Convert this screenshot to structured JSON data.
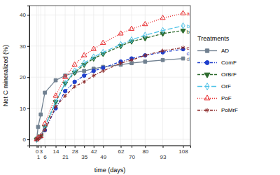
{
  "chart_data": {
    "type": "line",
    "x_label": "time (days)",
    "y_label": "Net C mineralized (%)",
    "x": [
      0,
      1,
      3,
      6,
      14,
      21,
      28,
      35,
      42,
      49,
      62,
      70,
      80,
      93,
      108
    ],
    "xlim": [
      -5.4,
      113.4
    ],
    "xticks": [
      0,
      1,
      3,
      6,
      14,
      21,
      28,
      35,
      42,
      49,
      62,
      70,
      80,
      93,
      108
    ],
    "ylim": [
      -2,
      43
    ],
    "yticks": [
      0,
      10,
      20,
      30,
      40
    ],
    "grid": true,
    "legend": "right",
    "legend_title": "Treatments",
    "series": [
      {
        "name": "AD",
        "color": "#708090",
        "marker": "square",
        "line_style": "solid",
        "values": [
          0,
          4,
          8,
          15,
          19,
          20.5,
          21.5,
          22,
          22.7,
          23.3,
          24,
          24.5,
          25,
          25.5,
          26
        ]
      },
      {
        "name": "ComF",
        "color": "#1f3fcc",
        "marker": "circle",
        "line_style": "dashdot",
        "values": [
          0,
          0.3,
          1,
          3,
          10,
          15.5,
          18.5,
          20.5,
          22,
          23,
          25,
          26,
          27,
          28,
          29
        ]
      },
      {
        "name": "OrBrF",
        "color": "#2e6b2e",
        "marker": "triangle-down",
        "line_style": "dashed",
        "values": [
          0,
          0.3,
          1,
          4,
          12,
          18,
          21.5,
          24,
          26,
          27.5,
          30,
          31.5,
          32.5,
          34,
          35
        ]
      },
      {
        "name": "OrF",
        "color": "#4fc3e8",
        "marker": "diamond-open",
        "line_style": "longdash",
        "values": [
          0,
          0.3,
          1,
          4,
          12,
          18,
          22,
          24.5,
          26.5,
          28,
          30.5,
          32,
          33.5,
          35,
          36.5
        ]
      },
      {
        "name": "PoF",
        "color": "#e8282b",
        "marker": "triangle-open",
        "line_style": "dotted",
        "values": [
          0,
          0.5,
          1,
          5,
          14,
          20,
          24,
          27,
          29,
          31,
          34,
          35.5,
          37,
          39,
          40.5
        ]
      },
      {
        "name": "PoMrF",
        "color": "#8b2a2a",
        "marker": "asterisk",
        "line_style": "dashdot",
        "values": [
          0,
          0.2,
          0.8,
          3,
          10.5,
          14,
          17,
          18.5,
          20.5,
          22,
          24.5,
          25.5,
          27,
          28.5,
          29.5
        ]
      }
    ],
    "annotations": [
      {
        "text": "a",
        "series": "PoF"
      },
      {
        "text": "b",
        "series": "OrF"
      },
      {
        "text": "b",
        "series": "OrBrF"
      },
      {
        "text": "c",
        "series": "PoMrF"
      },
      {
        "text": "c",
        "series": "ComF"
      },
      {
        "text": "d",
        "series": "AD"
      }
    ]
  }
}
